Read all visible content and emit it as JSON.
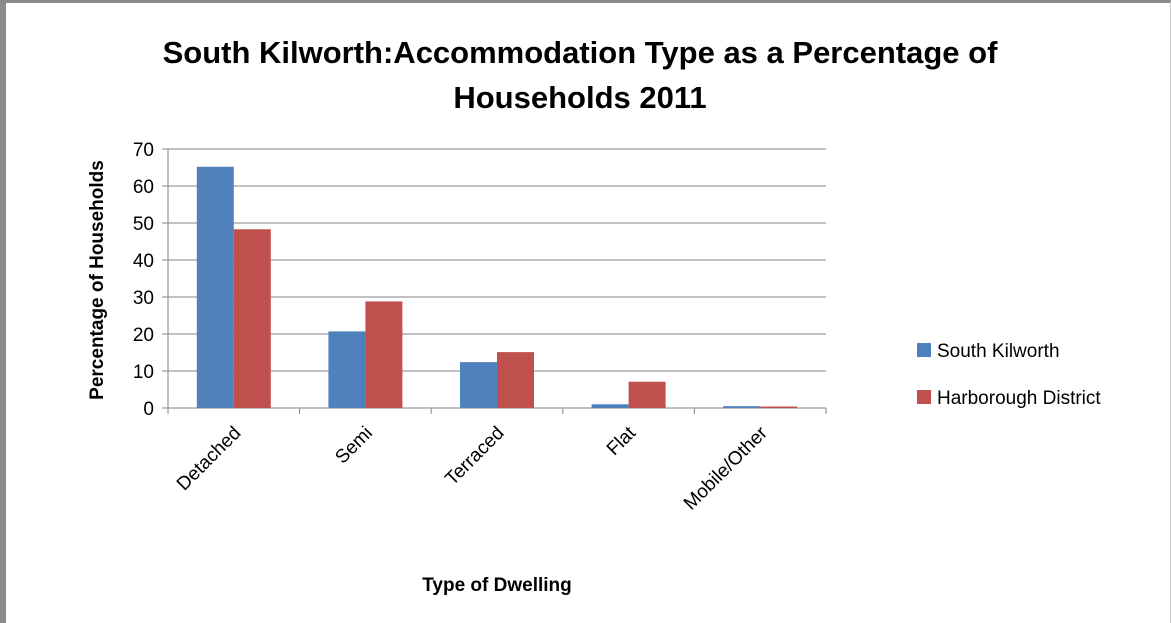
{
  "chart_data": {
    "type": "bar",
    "title_line1": "South Kilworth:Accommodation Type as a Percentage of",
    "title_line2": "Households 2011",
    "xlabel": "Type of Dwelling",
    "ylabel": "Percentage of Households",
    "categories": [
      "Detached",
      "Semi",
      "Terraced",
      "Flat",
      "Mobile/Other"
    ],
    "series": [
      {
        "name": "South Kilworth",
        "color": "#4f81bd",
        "values": [
          65.2,
          20.7,
          12.4,
          1.0,
          0.5
        ]
      },
      {
        "name": "Harborough District",
        "color": "#c0504d",
        "values": [
          48.3,
          28.8,
          15.1,
          7.1,
          0.4
        ]
      }
    ],
    "ylim": [
      0,
      70
    ],
    "yticks": [
      0,
      10,
      20,
      30,
      40,
      50,
      60,
      70
    ],
    "grid": true,
    "legend_position": "right"
  }
}
